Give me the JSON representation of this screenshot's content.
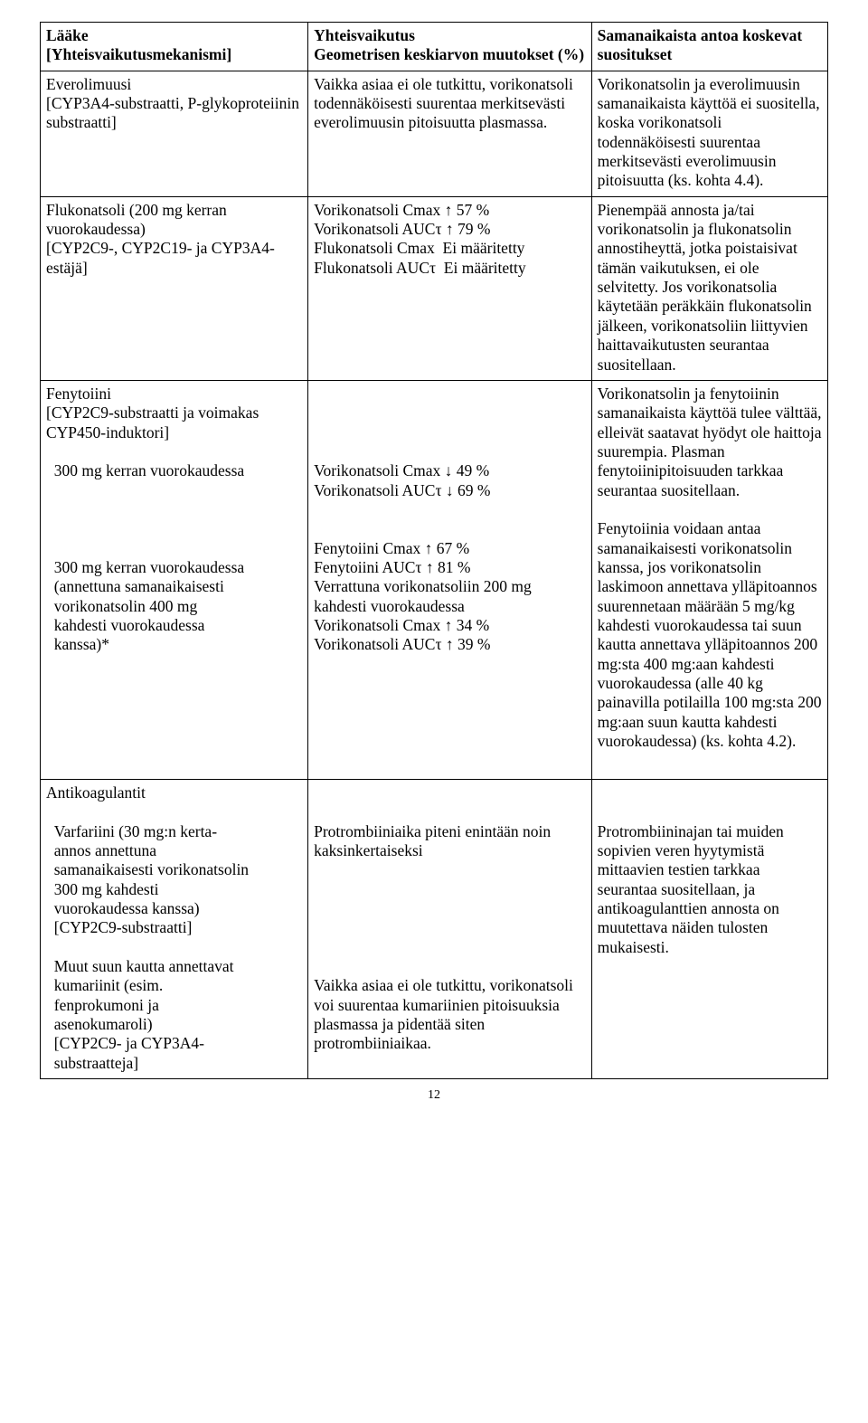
{
  "header": {
    "c1": "Lääke\n[Yhteisvaikutusmekanismi]",
    "c2": "Yhteisvaikutus\nGeometrisen keskiarvon muutokset (%)",
    "c3": "Samanaikaista antoa koskevat suositukset"
  },
  "r1": {
    "c1": "Everolimuusi\n[CYP3A4-substraatti, P-glykoproteiinin substraatti]",
    "c2": "Vaikka asiaa ei ole tutkittu, vorikonatsoli todennäköisesti suurentaa merkitsevästi everolimuusin pitoisuutta plasmassa.",
    "c3": "Vorikonatsolin ja everolimuusin samanaikaista käyttöä ei suositella, koska vorikonatsoli todennäköisesti suurentaa merkitsevästi everolimuusin pitoisuutta (ks. kohta 4.4)."
  },
  "r2": {
    "c1": "Flukonatsoli (200 mg kerran vuorokaudessa)\n[CYP2C9-, CYP2C19- ja CYP3A4-estäjä]",
    "c2": "Vorikonatsoli Cmax ↑ 57 %\nVorikonatsoli AUCτ ↑ 79 %\nFlukonatsoli Cmax  Ei määritetty\nFlukonatsoli AUCτ  Ei määritetty",
    "c3": "Pienempää annosta ja/tai vorikonatsolin ja flukonatsolin annostiheyttä, jotka poistaisivat tämän vaikutuksen, ei ole selvitetty. Jos vorikonatsolia käytetään peräkkäin flukonatsolin jälkeen, vorikonatsoliin liittyvien haittavaikutusten seurantaa suositellaan."
  },
  "r3": {
    "c1": "Fenytoiini\n[CYP2C9-substraatti ja voimakas CYP450-induktori]\n\n  300 mg kerran vuorokaudessa\n\n\n\n\n  300 mg kerran vuorokaudessa\n  (annettuna samanaikaisesti\n  vorikonatsolin 400 mg\n  kahdesti vuorokaudessa\n  kanssa)*",
    "c2": "\n\n\n\nVorikonatsoli Cmax ↓ 49 %\nVorikonatsoli AUCτ ↓ 69 %\n\n\nFenytoiini Cmax ↑ 67 %\nFenytoiini AUCτ ↑ 81 %\nVerrattuna vorikonatsoliin 200 mg kahdesti vuorokaudessa\nVorikonatsoli Cmax ↑ 34 %\nVorikonatsoli AUCτ ↑ 39 %",
    "c3": "Vorikonatsolin ja fenytoiinin samanaikaista käyttöä tulee välttää, elleivät saatavat hyödyt ole haittoja suurempia. Plasman fenytoiinipitoisuuden tarkkaa seurantaa suositellaan.\n\nFenytoiinia voidaan antaa samanaikaisesti vorikonatsolin kanssa, jos vorikonatsolin laskimoon annettava ylläpitoannos suurennetaan määrään 5 mg/kg kahdesti vuorokaudessa tai suun kautta annettava ylläpitoannos 200 mg:sta 400 mg:aan kahdesti vuorokaudessa (alle 40 kg painavilla potilailla 100 mg:sta 200 mg:aan suun kautta kahdesti vuorokaudessa) (ks. kohta 4.2)."
  },
  "r4": {
    "c1": "Antikoagulantit\n\n  Varfariini (30 mg:n kerta-\n  annos annettuna\n  samanaikaisesti vorikonatsolin\n  300 mg kahdesti\n  vuorokaudessa kanssa)\n  [CYP2C9-substraatti]\n\n  Muut suun kautta annettavat\n  kumariinit (esim.\n  fenprokumoni ja\n  asenokumaroli)\n  [CYP2C9- ja CYP3A4-\n  substraatteja]",
    "c2": "\n\nProtrombiiniaika piteni enintään noin kaksinkertaiseksi\n\n\n\n\n\n\nVaikka asiaa ei ole tutkittu, vorikonatsoli voi suurentaa kumariinien pitoisuuksia plasmassa ja pidentää siten protrombiiniaikaa.",
    "c3": "\n\nProtrombiininajan tai muiden sopivien veren hyytymistä mittaavien testien tarkkaa seurantaa suositellaan, ja antikoagulanttien annosta on muutettava näiden tulosten mukaisesti."
  },
  "pagenum": "12"
}
